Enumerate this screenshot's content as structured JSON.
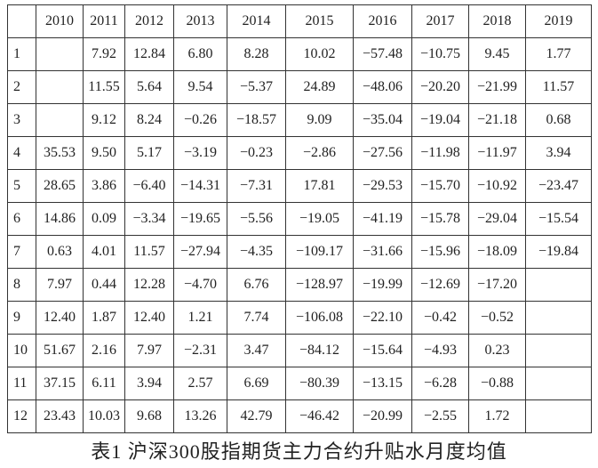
{
  "table": {
    "header": [
      "2010",
      "2011",
      "2012",
      "2013",
      "2014",
      "2015",
      "2016",
      "2017",
      "2018",
      "2019"
    ],
    "rows": [
      [
        "1",
        null,
        "7.92",
        "12.84",
        "6.80",
        "8.28",
        "10.02",
        "−57.48",
        "−10.75",
        "9.45",
        "1.77"
      ],
      [
        "2",
        null,
        "11.55",
        "5.64",
        "9.54",
        "−5.37",
        "24.89",
        "−48.06",
        "−20.20",
        "−21.99",
        "11.57"
      ],
      [
        "3",
        null,
        "9.12",
        "8.24",
        "−0.26",
        "−18.57",
        "9.09",
        "−35.04",
        "−19.04",
        "−21.18",
        "0.68"
      ],
      [
        "4",
        "35.53",
        "9.50",
        "5.17",
        "−3.19",
        "−0.23",
        "−2.86",
        "−27.56",
        "−11.98",
        "−11.97",
        "3.94"
      ],
      [
        "5",
        "28.65",
        "3.86",
        "−6.40",
        "−14.31",
        "−7.31",
        "17.81",
        "−29.53",
        "−15.70",
        "−10.92",
        "−23.47"
      ],
      [
        "6",
        "14.86",
        "0.09",
        "−3.34",
        "−19.65",
        "−5.56",
        "−19.05",
        "−41.19",
        "−15.78",
        "−29.04",
        "−15.54"
      ],
      [
        "7",
        "0.63",
        "4.01",
        "11.57",
        "−27.94",
        "−4.35",
        "−109.17",
        "−31.66",
        "−15.96",
        "−18.09",
        "−19.84"
      ],
      [
        "8",
        "7.97",
        "0.44",
        "12.28",
        "−4.70",
        "6.76",
        "−128.97",
        "−19.99",
        "−12.69",
        "−17.20",
        null
      ],
      [
        "9",
        "12.40",
        "1.87",
        "12.40",
        "1.21",
        "7.74",
        "−106.08",
        "−22.10",
        "−0.42",
        "−0.52",
        null
      ],
      [
        "10",
        "51.67",
        "2.16",
        "7.97",
        "−2.31",
        "3.47",
        "−84.12",
        "−15.64",
        "−4.93",
        "0.23",
        null
      ],
      [
        "11",
        "37.15",
        "6.11",
        "3.94",
        "2.57",
        "6.69",
        "−80.39",
        "−13.15",
        "−6.28",
        "−0.88",
        null
      ],
      [
        "12",
        "23.43",
        "10.03",
        "9.68",
        "13.26",
        "42.79",
        "−46.42",
        "−20.99",
        "−2.55",
        "1.72",
        null
      ]
    ],
    "caption": "表1 沪深300股指期货主力合约升贴水月度均值"
  }
}
